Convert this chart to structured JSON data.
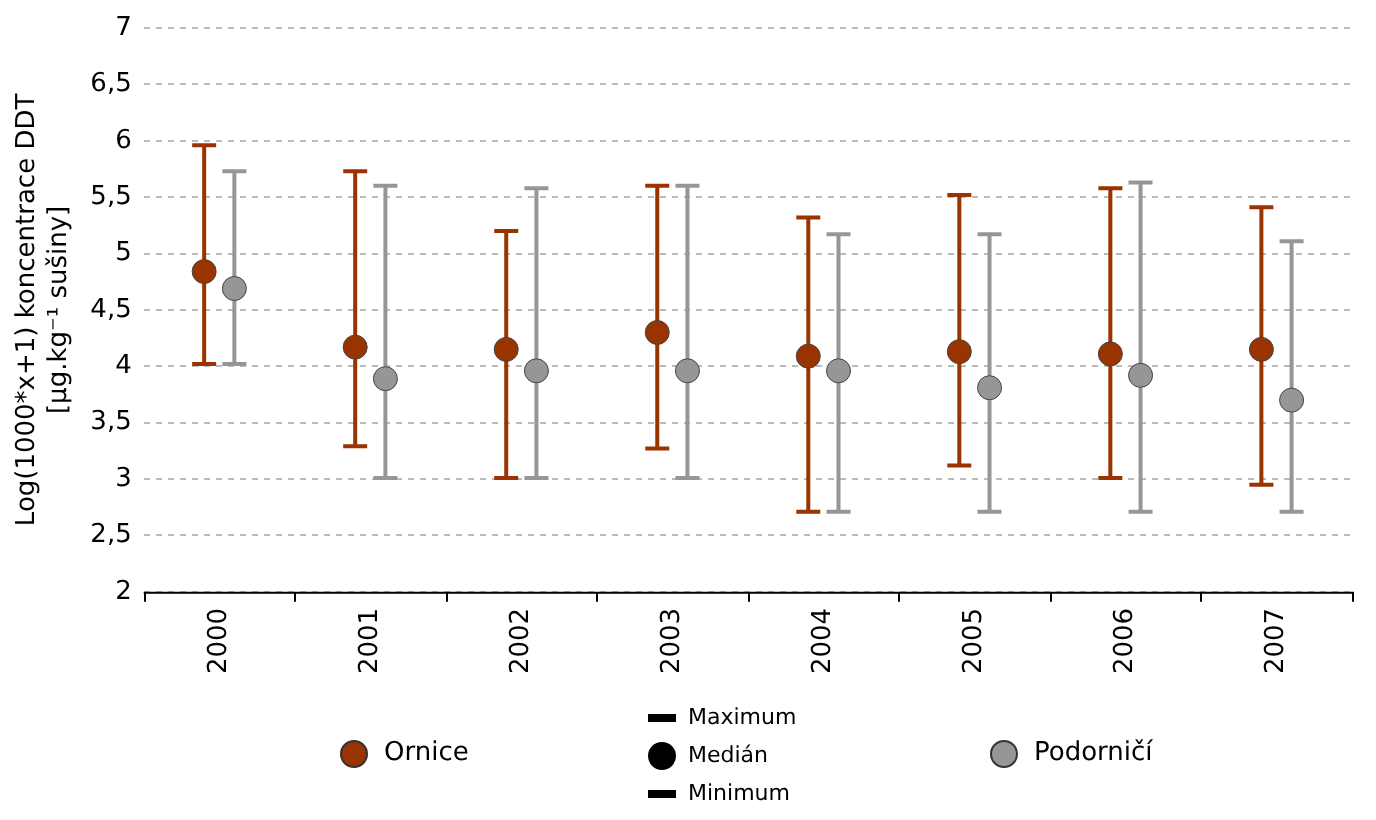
{
  "chart_data": {
    "type": "scatter",
    "ylabel": "Log(1000*x+1) koncentrace DDT\n[μg.kg⁻¹ sušiny]",
    "categories": [
      "2000",
      "2001",
      "2002",
      "2003",
      "2004",
      "2005",
      "2006",
      "2007"
    ],
    "series": [
      {
        "name": "Ornice",
        "color": "#993300",
        "values": [
          4.84,
          4.17,
          4.15,
          4.3,
          4.09,
          4.13,
          4.11,
          4.15
        ],
        "errors": [
          [
            4.02,
            5.96
          ],
          [
            3.29,
            5.73
          ],
          [
            3.01,
            5.2
          ],
          [
            3.27,
            5.6
          ],
          [
            2.71,
            5.32
          ],
          [
            3.12,
            5.52
          ],
          [
            3.01,
            5.58
          ],
          [
            2.95,
            5.41
          ]
        ]
      },
      {
        "name": "Podorničí",
        "color": "#969696",
        "values": [
          4.69,
          3.89,
          3.96,
          3.96,
          3.96,
          3.81,
          3.92,
          3.7
        ],
        "errors": [
          [
            4.02,
            5.73
          ],
          [
            3.01,
            5.6
          ],
          [
            3.01,
            5.58
          ],
          [
            3.01,
            5.6
          ],
          [
            2.71,
            5.17
          ],
          [
            2.71,
            5.17
          ],
          [
            2.71,
            5.63
          ],
          [
            2.71,
            5.11
          ]
        ]
      }
    ],
    "ylim": [
      2,
      7
    ],
    "yticks": [
      {
        "value": 2,
        "label": "2"
      },
      {
        "value": 2.5,
        "label": "2,5"
      },
      {
        "value": 3,
        "label": "3"
      },
      {
        "value": 3.5,
        "label": "3,5"
      },
      {
        "value": 4,
        "label": "4"
      },
      {
        "value": 4.5,
        "label": "4,5"
      },
      {
        "value": 5,
        "label": "5"
      },
      {
        "value": 5.5,
        "label": "5,5"
      },
      {
        "value": 6,
        "label": "6"
      },
      {
        "value": 6.5,
        "label": "6,5"
      },
      {
        "value": 7,
        "label": "7"
      }
    ],
    "grid": "y",
    "legend": "bottom",
    "marker": "circle",
    "annotations": [
      "Maximum",
      "Medián",
      "Minimum"
    ]
  }
}
